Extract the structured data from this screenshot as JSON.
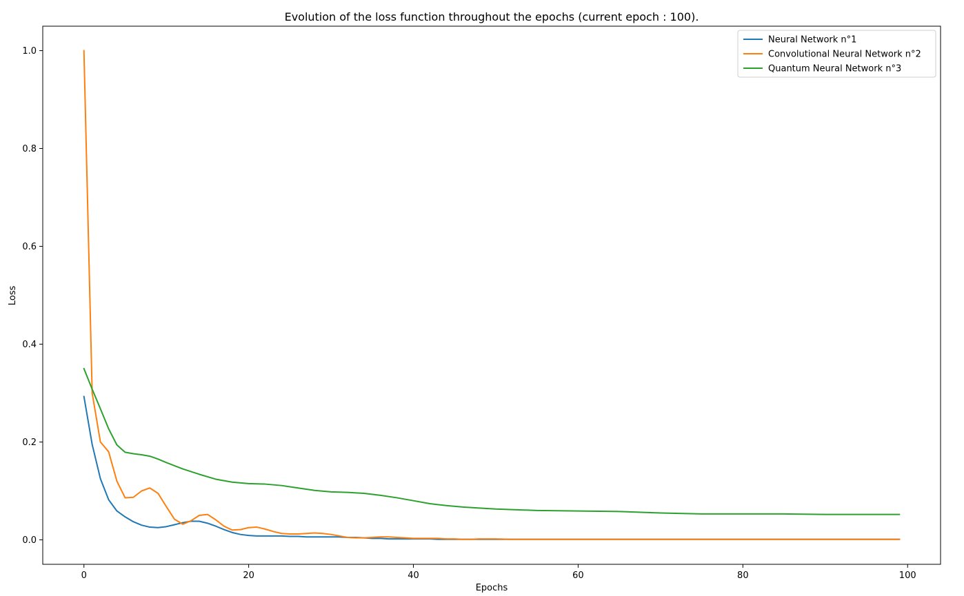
{
  "chart_data": {
    "type": "line",
    "title": "Evolution of the loss function throughout the epochs (current epoch : 100).",
    "xlabel": "Epochs",
    "ylabel": "Loss",
    "xlim": [
      -5,
      104
    ],
    "ylim": [
      -0.05,
      1.05
    ],
    "xticks": [
      0,
      20,
      40,
      60,
      80,
      100
    ],
    "yticks": [
      0.0,
      0.2,
      0.4,
      0.6,
      0.8,
      1.0
    ],
    "xtick_labels": [
      "0",
      "20",
      "40",
      "60",
      "80",
      "100"
    ],
    "ytick_labels": [
      "0.0",
      "0.2",
      "0.4",
      "0.6",
      "0.8",
      "1.0"
    ],
    "grid": false,
    "legend_position": "top-right",
    "series": [
      {
        "name": "Neural Network n°1",
        "color": "#1f77b4",
        "x": [
          0,
          1,
          2,
          3,
          4,
          5,
          6,
          7,
          8,
          9,
          10,
          11,
          12,
          13,
          14,
          15,
          16,
          17,
          18,
          19,
          20,
          21,
          22,
          23,
          24,
          25,
          26,
          27,
          28,
          29,
          30,
          31,
          32,
          33,
          34,
          35,
          36,
          37,
          38,
          39,
          40,
          41,
          42,
          43,
          44,
          45,
          46,
          47,
          48,
          49,
          50,
          52,
          55,
          60,
          65,
          70,
          75,
          80,
          85,
          90,
          95,
          99
        ],
        "y": [
          0.293,
          0.195,
          0.125,
          0.082,
          0.059,
          0.047,
          0.037,
          0.03,
          0.026,
          0.025,
          0.027,
          0.031,
          0.035,
          0.038,
          0.038,
          0.034,
          0.028,
          0.021,
          0.015,
          0.011,
          0.009,
          0.008,
          0.008,
          0.008,
          0.008,
          0.007,
          0.007,
          0.006,
          0.006,
          0.006,
          0.006,
          0.006,
          0.005,
          0.005,
          0.004,
          0.003,
          0.003,
          0.002,
          0.002,
          0.002,
          0.002,
          0.002,
          0.002,
          0.001,
          0.001,
          0.001,
          0.001,
          0.001,
          0.001,
          0.001,
          0.001,
          0.001,
          0.001,
          0.001,
          0.001,
          0.001,
          0.001,
          0.001,
          0.001,
          0.001,
          0.001,
          0.001
        ]
      },
      {
        "name": "Convolutional Neural Network n°2",
        "color": "#ff7f0e",
        "x": [
          0,
          1,
          2,
          3,
          4,
          5,
          6,
          7,
          8,
          9,
          10,
          11,
          12,
          13,
          14,
          15,
          16,
          17,
          18,
          19,
          20,
          21,
          22,
          23,
          24,
          25,
          26,
          27,
          28,
          29,
          30,
          31,
          32,
          33,
          34,
          35,
          36,
          37,
          38,
          39,
          40,
          41,
          42,
          43,
          44,
          45,
          46,
          47,
          48,
          49,
          50,
          52,
          55,
          60,
          65,
          70,
          75,
          80,
          85,
          90,
          95,
          99
        ],
        "y": [
          1.0,
          0.3,
          0.2,
          0.18,
          0.12,
          0.086,
          0.087,
          0.1,
          0.106,
          0.095,
          0.068,
          0.042,
          0.032,
          0.039,
          0.05,
          0.052,
          0.041,
          0.028,
          0.02,
          0.021,
          0.025,
          0.026,
          0.022,
          0.017,
          0.013,
          0.012,
          0.012,
          0.013,
          0.014,
          0.013,
          0.011,
          0.008,
          0.005,
          0.004,
          0.004,
          0.005,
          0.006,
          0.006,
          0.005,
          0.004,
          0.003,
          0.003,
          0.003,
          0.003,
          0.002,
          0.002,
          0.001,
          0.001,
          0.002,
          0.002,
          0.002,
          0.001,
          0.001,
          0.001,
          0.001,
          0.001,
          0.001,
          0.001,
          0.001,
          0.001,
          0.001,
          0.001
        ]
      },
      {
        "name": "Quantum Neural Network n°3",
        "color": "#2ca02c",
        "x": [
          0,
          1,
          2,
          3,
          4,
          5,
          6,
          7,
          8,
          9,
          10,
          12,
          14,
          16,
          18,
          20,
          22,
          24,
          26,
          28,
          30,
          32,
          34,
          36,
          38,
          40,
          42,
          44,
          46,
          48,
          50,
          55,
          60,
          65,
          70,
          75,
          80,
          85,
          90,
          95,
          99
        ],
        "y": [
          0.35,
          0.308,
          0.268,
          0.227,
          0.194,
          0.179,
          0.176,
          0.174,
          0.171,
          0.165,
          0.158,
          0.145,
          0.134,
          0.124,
          0.118,
          0.115,
          0.114,
          0.111,
          0.106,
          0.101,
          0.098,
          0.097,
          0.095,
          0.091,
          0.086,
          0.08,
          0.074,
          0.07,
          0.067,
          0.065,
          0.063,
          0.06,
          0.059,
          0.058,
          0.055,
          0.053,
          0.053,
          0.053,
          0.052,
          0.052,
          0.052
        ]
      }
    ]
  }
}
